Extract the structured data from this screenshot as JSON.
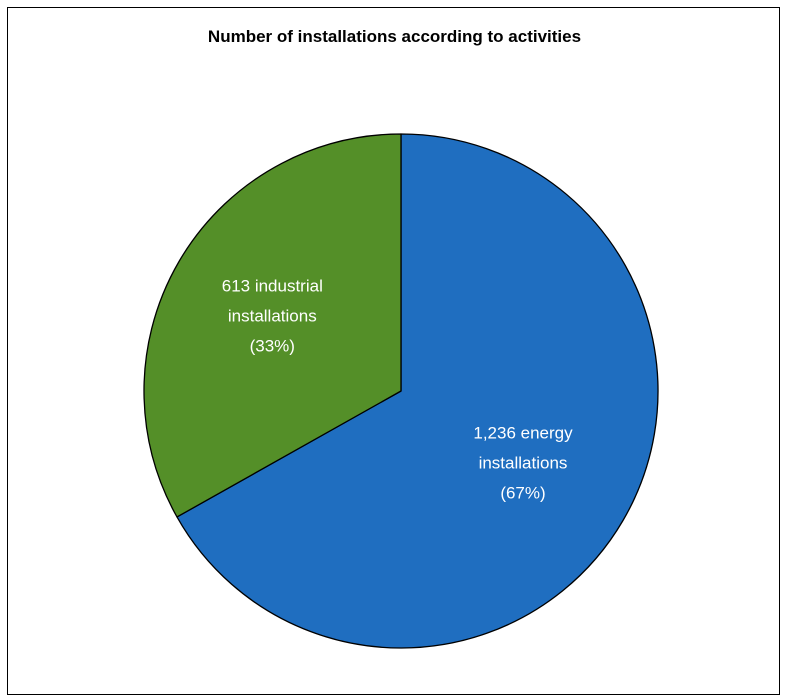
{
  "chart_data": {
    "type": "pie",
    "title": "Number of installations according to activities",
    "slices": [
      {
        "value": 1236,
        "percent": 67,
        "color": "#1f6ec0",
        "label_lines": [
          "1,236 energy",
          "installations",
          "(67%)"
        ]
      },
      {
        "value": 613,
        "percent": 33,
        "color": "#548f28",
        "label_lines": [
          "613 industrial",
          "installations",
          "(33%)"
        ]
      }
    ],
    "legend": "none"
  }
}
